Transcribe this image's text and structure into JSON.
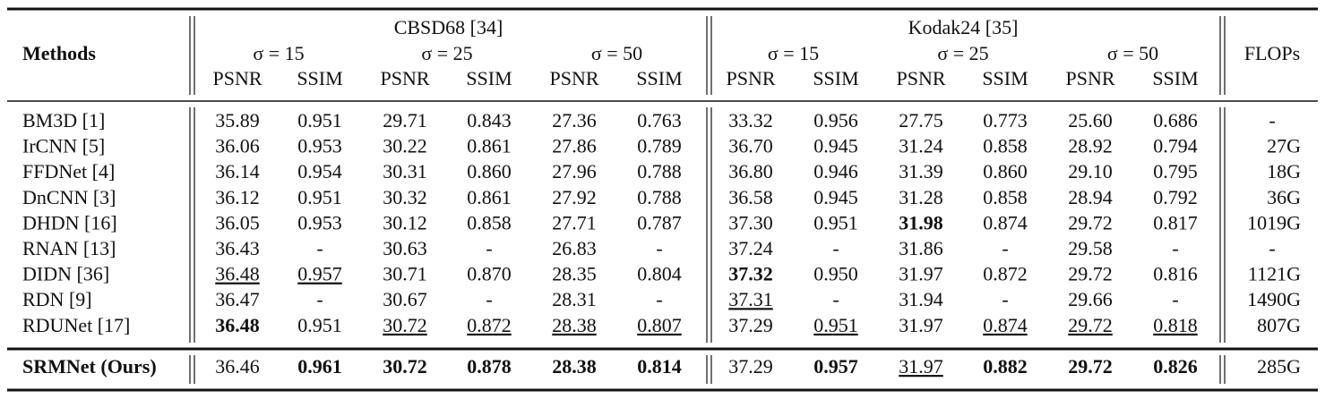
{
  "table": {
    "headers": {
      "methods": "Methods",
      "flops": "FLOPs",
      "groups": [
        {
          "name": "CBSD68 [34]",
          "sigmas": [
            "σ = 15",
            "σ = 25",
            "σ = 50"
          ]
        },
        {
          "name": "Kodak24 [35]",
          "sigmas": [
            "σ = 15",
            "σ = 25",
            "σ = 50"
          ]
        }
      ],
      "metrics": [
        "PSNR",
        "SSIM"
      ]
    },
    "rows": [
      [
        "BM3D [1]",
        "35.89",
        "0.951",
        "29.71",
        "0.843",
        "27.36",
        "0.763",
        "33.32",
        "0.956",
        "27.75",
        "0.773",
        "25.60",
        "0.686",
        "-"
      ],
      [
        "IrCNN [5]",
        "36.06",
        "0.953",
        "30.22",
        "0.861",
        "27.86",
        "0.789",
        "36.70",
        "0.945",
        "31.24",
        "0.858",
        "28.92",
        "0.794",
        "27G"
      ],
      [
        "FFDNet [4]",
        "36.14",
        "0.954",
        "30.31",
        "0.860",
        "27.96",
        "0.788",
        "36.80",
        "0.946",
        "31.39",
        "0.860",
        "29.10",
        "0.795",
        "18G"
      ],
      [
        "DnCNN [3]",
        "36.12",
        "0.951",
        "30.32",
        "0.861",
        "27.92",
        "0.788",
        "36.58",
        "0.945",
        "31.28",
        "0.858",
        "28.94",
        "0.792",
        "36G"
      ],
      [
        "DHDN [16]",
        "36.05",
        "0.953",
        "30.12",
        "0.858",
        "27.71",
        "0.787",
        "37.30",
        "0.951",
        "31.98",
        "0.874",
        "29.72",
        "0.817",
        "1019G"
      ],
      [
        "RNAN [13]",
        "36.43",
        "-",
        "30.63",
        "-",
        "26.83",
        "-",
        "37.24",
        "-",
        "31.86",
        "-",
        "29.58",
        "-",
        "-"
      ],
      [
        "DIDN [36]",
        "36.48",
        "0.957",
        "30.71",
        "0.870",
        "28.35",
        "0.804",
        "37.32",
        "0.950",
        "31.97",
        "0.872",
        "29.72",
        "0.816",
        "1121G"
      ],
      [
        "RDN [9]",
        "36.47",
        "-",
        "30.67",
        "-",
        "28.31",
        "-",
        "37.31",
        "-",
        "31.94",
        "-",
        "29.66",
        "-",
        "1490G"
      ],
      [
        "RDUNet [17]",
        "36.48",
        "0.951",
        "30.72",
        "0.872",
        "28.38",
        "0.807",
        "37.29",
        "0.951",
        "31.97",
        "0.874",
        "29.72",
        "0.818",
        "807G"
      ],
      [
        "SRMNet (Ours)",
        "36.46",
        "0.961",
        "30.72",
        "0.878",
        "28.38",
        "0.814",
        "37.29",
        "0.957",
        "31.97",
        "0.882",
        "29.72",
        "0.826",
        "285G"
      ]
    ],
    "bold": [
      [
        4,
        9
      ],
      [
        6,
        7
      ],
      [
        8,
        1
      ],
      [
        9,
        0
      ],
      [
        9,
        2
      ],
      [
        9,
        3
      ],
      [
        9,
        4
      ],
      [
        9,
        5
      ],
      [
        9,
        6
      ],
      [
        9,
        8
      ],
      [
        9,
        10
      ],
      [
        9,
        11
      ],
      [
        9,
        12
      ]
    ],
    "underline": [
      [
        6,
        1
      ],
      [
        6,
        2
      ],
      [
        7,
        7
      ],
      [
        8,
        3
      ],
      [
        8,
        4
      ],
      [
        8,
        5
      ],
      [
        8,
        6
      ],
      [
        8,
        8
      ],
      [
        8,
        10
      ],
      [
        8,
        11
      ],
      [
        8,
        12
      ],
      [
        9,
        9
      ]
    ]
  }
}
